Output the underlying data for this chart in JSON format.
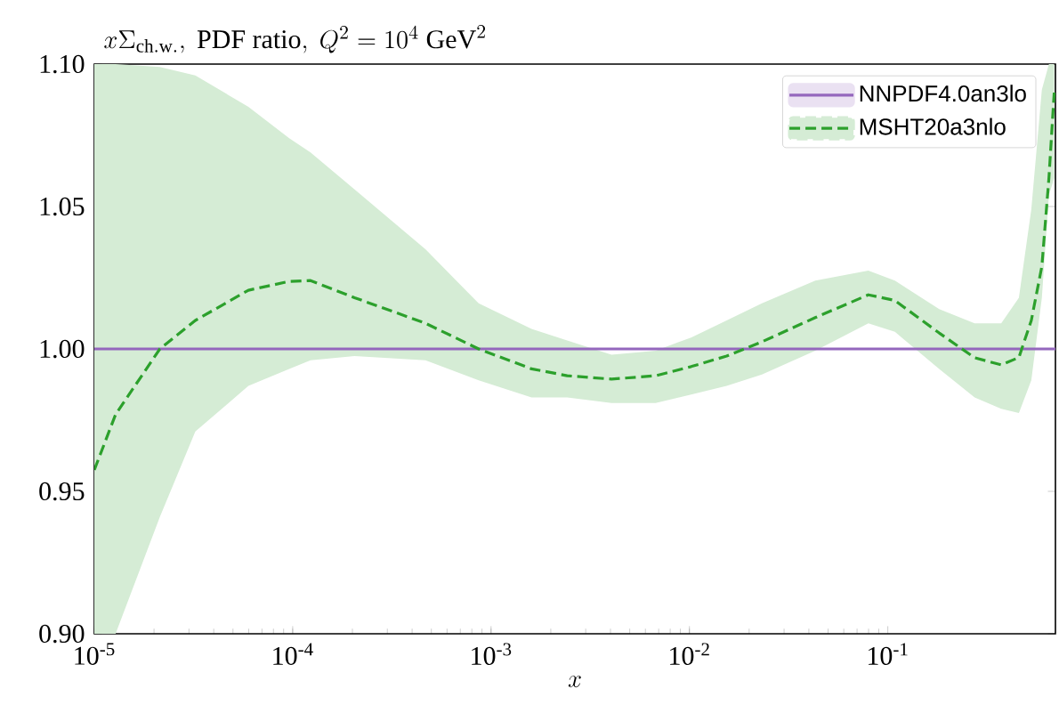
{
  "chart_data": {
    "type": "line",
    "title": "x\\Sigma_{\\rm ch.w.},\\ \\mathrm{PDF\\ ratio},\\ Q^2=10^4\\ \\mathrm{GeV}^2",
    "xlabel": "x",
    "log": "x",
    "grid": false,
    "legend": "top right",
    "marker": "none",
    "xlim": [
      1e-05,
      0.7
    ],
    "ylim": [
      0.9,
      1.1
    ],
    "xticks": [
      {
        "value": 1e-05,
        "label": "10$^{-5}$"
      },
      {
        "value": 0.0001,
        "label": "10$^{-4}$"
      },
      {
        "value": 0.001,
        "label": "10$^{-3}$"
      },
      {
        "value": 0.01,
        "label": "10$^{-2}$"
      },
      {
        "value": 0.1,
        "label": "10$^{-1}$"
      }
    ],
    "yticks": [
      {
        "value": 0.9,
        "label": "0.90"
      },
      {
        "value": 0.95,
        "label": "0.95"
      },
      {
        "value": 1.0,
        "label": "1.00"
      },
      {
        "value": 1.05,
        "label": "1.05"
      },
      {
        "value": 1.1,
        "label": "1.10"
      }
    ],
    "series": [
      {
        "name": "NNPDF4.0an3lo",
        "color": "#9467bd",
        "line_style": "solid",
        "x": [
          1e-05,
          0.7
        ],
        "values": [
          1.0,
          1.0
        ]
      },
      {
        "name": "MSHT20a3nlo",
        "color": "#2ca02c",
        "line_style": "dashed",
        "x": [
          1e-05,
          1.28e-05,
          2.14e-05,
          3.23e-05,
          5.98e-05,
          9.6e-05,
          0.000123,
          0.000205,
          0.000467,
          0.000866,
          0.0016,
          0.00242,
          0.00405,
          0.00676,
          0.0102,
          0.0154,
          0.0232,
          0.0431,
          0.0798,
          0.1086,
          0.1816,
          0.274,
          0.373,
          0.458,
          0.529,
          0.598,
          0.649,
          0.69
        ],
        "values": [
          0.9575,
          0.977,
          1.0,
          1.01,
          1.0206,
          1.0237,
          1.024,
          1.018,
          1.009,
          1.0,
          0.993,
          0.9906,
          0.9894,
          0.9906,
          0.9938,
          0.9975,
          1.0025,
          1.011,
          1.019,
          1.017,
          1.0056,
          0.9969,
          0.9944,
          0.997,
          1.01,
          1.029,
          1.06,
          1.09
        ],
        "lower": [
          0.9,
          0.9,
          0.941,
          0.971,
          0.987,
          0.993,
          0.996,
          0.9975,
          0.996,
          0.989,
          0.983,
          0.983,
          0.981,
          0.981,
          0.984,
          0.987,
          0.991,
          0.9994,
          1.009,
          1.006,
          0.993,
          0.983,
          0.979,
          0.9775,
          0.989,
          1.018,
          1.054,
          1.06
        ],
        "upper": [
          1.1,
          1.1,
          1.099,
          1.096,
          1.085,
          1.074,
          1.069,
          1.056,
          1.035,
          1.016,
          1.007,
          1.003,
          0.998,
          0.9994,
          1.004,
          1.01,
          1.016,
          1.024,
          1.0275,
          1.024,
          1.014,
          1.009,
          1.009,
          1.018,
          1.049,
          1.091,
          1.1,
          1.1
        ]
      }
    ]
  }
}
